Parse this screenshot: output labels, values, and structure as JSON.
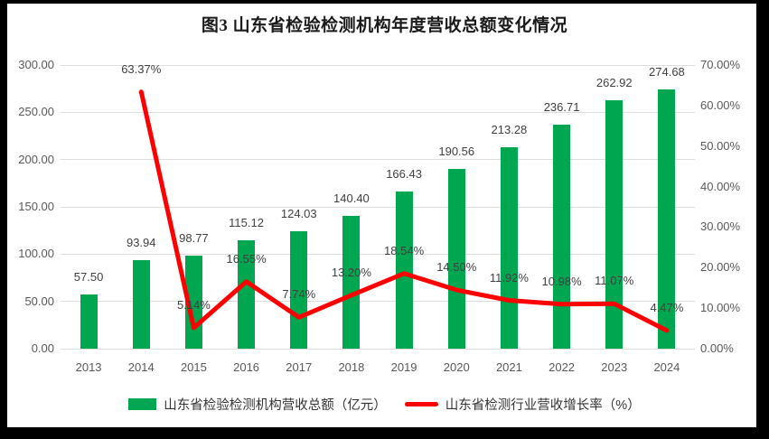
{
  "title": "图3  山东省检验检测机构年度营收总额变化情况",
  "colors": {
    "bar": "#00A650",
    "line": "#FF0000",
    "grid": "#DDDDDD",
    "axis_text": "#595959",
    "data_label_text": "#404040",
    "frame_border": "#000000"
  },
  "chart_data": {
    "type": "bar+line combo",
    "title": "图3  山东省检验检测机构年度营收总额变化情况",
    "categories": [
      "2013",
      "2014",
      "2015",
      "2016",
      "2017",
      "2018",
      "2019",
      "2020",
      "2021",
      "2022",
      "2023",
      "2024"
    ],
    "series": [
      {
        "name": "山东省检验检测机构营收总额（亿元）",
        "type": "bar",
        "axis": "left",
        "color": "#00A650",
        "values": [
          57.5,
          93.94,
          98.77,
          115.12,
          124.03,
          140.4,
          166.43,
          190.56,
          213.28,
          236.71,
          262.92,
          274.68
        ],
        "labels": [
          "57.50",
          "93.94",
          "98.77",
          "115.12",
          "124.03",
          "140.40",
          "166.43",
          "190.56",
          "213.28",
          "236.71",
          "262.92",
          "274.68"
        ]
      },
      {
        "name": "山东省检测行业营收增长率（%）",
        "type": "line",
        "axis": "right",
        "color": "#FF0000",
        "values": [
          null,
          63.37,
          5.14,
          16.55,
          7.74,
          13.2,
          18.54,
          14.5,
          11.92,
          10.98,
          11.07,
          4.47
        ],
        "labels": [
          null,
          "63.37%",
          "5.14%",
          "16.55%",
          "7.74%",
          "13.20%",
          "18.54%",
          "14.50%",
          "11.92%",
          "10.98%",
          "11.07%",
          "4.47%"
        ]
      }
    ],
    "left_axis": {
      "min": 0,
      "max": 300,
      "step": 50,
      "tick_labels": [
        "300.00",
        "250.00",
        "200.00",
        "150.00",
        "100.00",
        "50.00",
        "0.00"
      ]
    },
    "right_axis": {
      "min": 0,
      "max": 70,
      "step": 10,
      "tick_labels": [
        "70.00%",
        "60.00%",
        "50.00%",
        "40.00%",
        "30.00%",
        "20.00%",
        "10.00%",
        "0.00%"
      ]
    },
    "grid": true,
    "legend_position": "bottom"
  }
}
